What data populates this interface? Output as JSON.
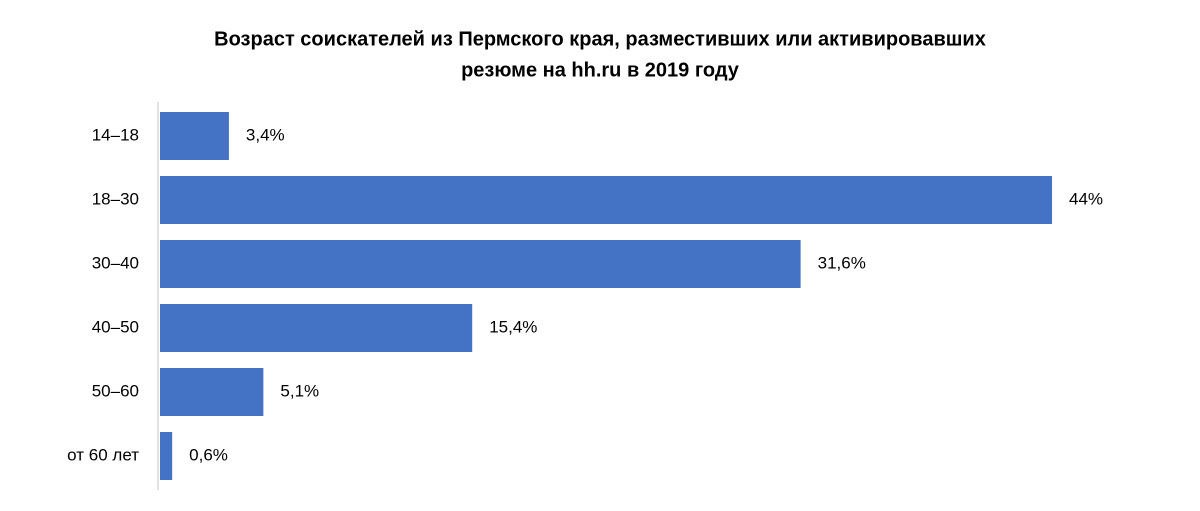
{
  "chart_data": {
    "type": "bar",
    "orientation": "horizontal",
    "title": [
      "Возраст соискателей из Пермского края, разместивших или активировавших",
      "резюме на hh.ru в 2019 году"
    ],
    "categories": [
      "14–18",
      "18–30",
      "30–40",
      "40–50",
      "50–60",
      "от 60 лет"
    ],
    "values": [
      3.4,
      44,
      31.6,
      15.4,
      5.1,
      0.6
    ],
    "value_labels": [
      "3,4%",
      "44%",
      "31,6%",
      "15,4%",
      "5,1%",
      "0,6%"
    ],
    "color": "#4472c4"
  }
}
